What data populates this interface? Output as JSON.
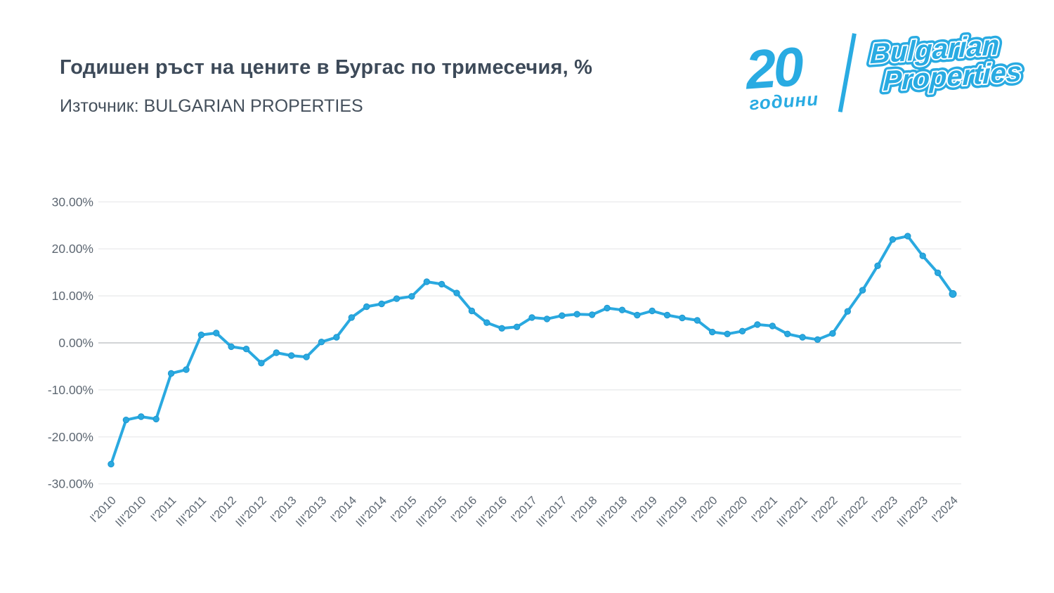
{
  "header": {
    "title": "Годишен ръст на цените в Бургас по тримесечия, %",
    "source_label": "Източник: BULGARIAN PROPERTIES"
  },
  "logo": {
    "number": "20",
    "years_word": "години",
    "brand_line1": "Bulgarian",
    "brand_line2": "Properties",
    "color": "#29abe2"
  },
  "colors": {
    "line": "#2aa9e0",
    "marker": "#2aa9e0",
    "marker_edge": "#1b96cf",
    "grid": "#e7e8ea",
    "zero_line": "#c3c6c9",
    "axis_text": "#5d6772",
    "title_text": "#3d4a59"
  },
  "chart_data": {
    "type": "line",
    "title": "Годишен ръст на цените в Бургас по тримесечия, %",
    "subtitle": "Източник: BULGARIAN PROPERTIES",
    "xlabel": "",
    "ylabel": "",
    "legend": "none",
    "grid": true,
    "ylim": [
      -30,
      30
    ],
    "y_ticks_labels": [
      "30.00%",
      "20.00%",
      "10.00%",
      "0.00%",
      "-10.00%",
      "-20.00%",
      "-30.00%"
    ],
    "y_ticks_values": [
      30,
      20,
      10,
      0,
      -10,
      -20,
      -30
    ],
    "x_tick_shown_every": 2,
    "categories": [
      "I'2010",
      "II'2010",
      "III'2010",
      "IV'2010",
      "I'2011",
      "II'2011",
      "III'2011",
      "IV'2011",
      "I'2012",
      "II'2012",
      "III'2012",
      "IV'2012",
      "I'2013",
      "II'2013",
      "III'2013",
      "IV'2013",
      "I'2014",
      "II'2014",
      "III'2014",
      "IV'2014",
      "I'2015",
      "II'2015",
      "III'2015",
      "IV'2015",
      "I'2016",
      "II'2016",
      "III'2016",
      "IV'2016",
      "I'2017",
      "II'2017",
      "III'2017",
      "IV'2017",
      "I'2018",
      "II'2018",
      "III'2018",
      "IV'2018",
      "I'2019",
      "II'2019",
      "III'2019",
      "IV'2019",
      "I'2020",
      "II'2020",
      "III'2020",
      "IV'2020",
      "I'2021",
      "II'2021",
      "III'2021",
      "IV'2021",
      "I'2022",
      "II'2022",
      "III'2022",
      "IV'2022",
      "I'2023",
      "II'2023",
      "III'2023",
      "IV'2023",
      "I'2024"
    ],
    "values": [
      -25.8,
      -16.4,
      -15.7,
      -16.2,
      -6.5,
      -5.7,
      1.7,
      2.1,
      -0.8,
      -1.3,
      -4.3,
      -2.1,
      -2.7,
      -3.0,
      0.2,
      1.2,
      5.4,
      7.7,
      8.3,
      9.4,
      9.9,
      13.0,
      12.5,
      10.6,
      6.8,
      4.3,
      3.1,
      3.4,
      5.4,
      5.1,
      5.8,
      6.1,
      6.0,
      7.4,
      7.0,
      5.9,
      6.8,
      5.9,
      5.3,
      4.8,
      2.3,
      1.9,
      2.5,
      3.9,
      3.6,
      1.9,
      1.2,
      0.7,
      2.0,
      6.7,
      11.2,
      16.4,
      22.0,
      22.7,
      18.5,
      14.9,
      10.4
    ]
  }
}
